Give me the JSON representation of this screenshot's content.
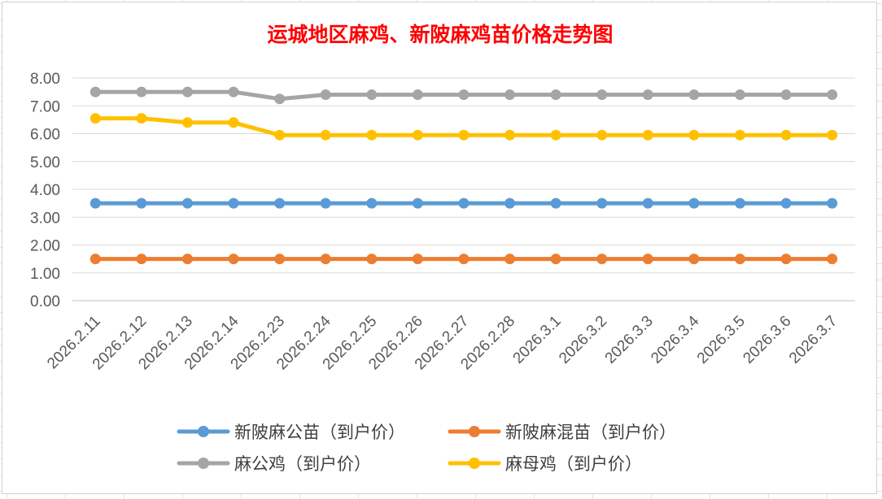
{
  "chart_data": {
    "type": "line",
    "title": "运城地区麻鸡、新陂麻鸡苗价格走势图",
    "xlabel": "",
    "ylabel": "",
    "ylim": [
      0,
      8
    ],
    "y_ticks": [
      "0.00",
      "1.00",
      "2.00",
      "3.00",
      "4.00",
      "5.00",
      "6.00",
      "7.00",
      "8.00"
    ],
    "grid": true,
    "legend_position": "bottom",
    "categories": [
      "2026.2.11",
      "2026.2.12",
      "2026.2.13",
      "2026.2.14",
      "2026.2.23",
      "2026.2.24",
      "2026.2.25",
      "2026.2.26",
      "2026.2.27",
      "2026.2.28",
      "2026.3.1",
      "2026.3.2",
      "2026.3.3",
      "2026.3.4",
      "2026.3.5",
      "2026.3.6",
      "2026.3.7"
    ],
    "series": [
      {
        "name": "新陂麻公苗（到户价）",
        "color": "#5b9bd5",
        "values": [
          3.5,
          3.5,
          3.5,
          3.5,
          3.5,
          3.5,
          3.5,
          3.5,
          3.5,
          3.5,
          3.5,
          3.5,
          3.5,
          3.5,
          3.5,
          3.5,
          3.5
        ]
      },
      {
        "name": "新陂麻混苗（到户价）",
        "color": "#ed7d31",
        "values": [
          1.5,
          1.5,
          1.5,
          1.5,
          1.5,
          1.5,
          1.5,
          1.5,
          1.5,
          1.5,
          1.5,
          1.5,
          1.5,
          1.5,
          1.5,
          1.5,
          1.5
        ]
      },
      {
        "name": "麻公鸡（到户价）",
        "color": "#a5a5a5",
        "values": [
          7.5,
          7.5,
          7.5,
          7.5,
          7.25,
          7.4,
          7.4,
          7.4,
          7.4,
          7.4,
          7.4,
          7.4,
          7.4,
          7.4,
          7.4,
          7.4,
          7.4
        ]
      },
      {
        "name": "麻母鸡（到户价）",
        "color": "#ffc000",
        "values": [
          6.55,
          6.55,
          6.4,
          6.4,
          5.95,
          5.95,
          5.95,
          5.95,
          5.95,
          5.95,
          5.95,
          5.95,
          5.95,
          5.95,
          5.95,
          5.95,
          5.95
        ]
      }
    ]
  }
}
